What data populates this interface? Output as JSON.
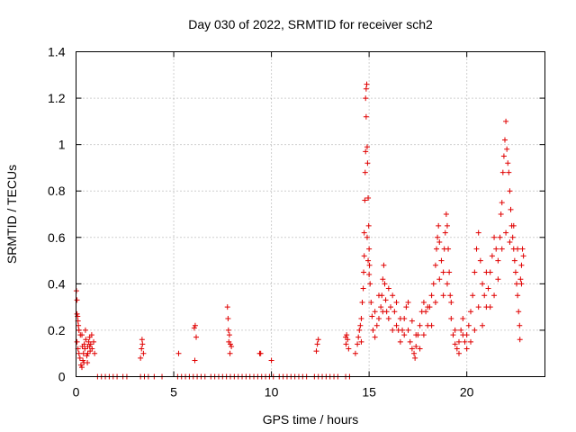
{
  "chart_data": {
    "type": "scatter",
    "title": "Day 030 of 2022, SRMTID for receiver sch2",
    "xlabel": "GPS time / hours",
    "ylabel": "SRMTID / TECUs",
    "xlim": [
      0,
      24
    ],
    "ylim": [
      0,
      1.4
    ],
    "xticks": [
      0,
      5,
      10,
      15,
      20
    ],
    "xtick_labels": [
      "0",
      "5",
      "10",
      "15",
      "20"
    ],
    "yticks": [
      0,
      0.2,
      0.4,
      0.6,
      0.8,
      1,
      1.2,
      1.4
    ],
    "ytick_labels": [
      "0",
      "0.2",
      "0.4",
      "0.6",
      "0.8",
      "1",
      "1.2",
      "1.4"
    ],
    "grid": true,
    "marker": "+",
    "series": [
      {
        "name": "sch2",
        "color": "#e00000",
        "points": [
          [
            0.02,
            0.37
          ],
          [
            0.05,
            0.33
          ],
          [
            0.05,
            0.27
          ],
          [
            0.08,
            0.26
          ],
          [
            0.1,
            0.24
          ],
          [
            0.12,
            0.22
          ],
          [
            0.15,
            0.2
          ],
          [
            0.05,
            0.15
          ],
          [
            0.1,
            0.12
          ],
          [
            0.15,
            0.1
          ],
          [
            0.2,
            0.08
          ],
          [
            0.22,
            0.18
          ],
          [
            0.25,
            0.05
          ],
          [
            0.3,
            0.04
          ],
          [
            0.32,
            0.13
          ],
          [
            0.35,
            0.07
          ],
          [
            0.38,
            0.1
          ],
          [
            0.42,
            0.14
          ],
          [
            0.45,
            0.12
          ],
          [
            0.5,
            0.16
          ],
          [
            0.55,
            0.09
          ],
          [
            0.6,
            0.13
          ],
          [
            0.65,
            0.15
          ],
          [
            0.7,
            0.17
          ],
          [
            0.72,
            0.11
          ],
          [
            0.75,
            0.14
          ],
          [
            0.8,
            0.18
          ],
          [
            0.82,
            0.12
          ],
          [
            0.3,
            0.18
          ],
          [
            0.4,
            0.06
          ],
          [
            0.6,
            0.1
          ],
          [
            0.7,
            0.13
          ],
          [
            0.9,
            0.15
          ],
          [
            0.95,
            0.1
          ],
          [
            0.48,
            0.2
          ],
          [
            0.58,
            0.06
          ],
          [
            3.3,
            0.08
          ],
          [
            3.35,
            0.12
          ],
          [
            3.4,
            0.14
          ],
          [
            3.45,
            0.1
          ],
          [
            3.38,
            0.16
          ],
          [
            5.25,
            0.1
          ],
          [
            6.05,
            0.21
          ],
          [
            6.1,
            0.22
          ],
          [
            6.15,
            0.17
          ],
          [
            6.08,
            0.07
          ],
          [
            7.75,
            0.3
          ],
          [
            7.78,
            0.25
          ],
          [
            7.8,
            0.2
          ],
          [
            7.85,
            0.18
          ],
          [
            7.82,
            0.15
          ],
          [
            7.9,
            0.14
          ],
          [
            7.95,
            0.13
          ],
          [
            7.88,
            0.1
          ],
          [
            9.4,
            0.1
          ],
          [
            9.45,
            0.1
          ],
          [
            10.0,
            0.07
          ],
          [
            12.3,
            0.11
          ],
          [
            12.35,
            0.14
          ],
          [
            12.4,
            0.16
          ],
          [
            13.8,
            0.17
          ],
          [
            13.85,
            0.18
          ],
          [
            13.9,
            0.16
          ],
          [
            13.82,
            0.14
          ],
          [
            13.95,
            0.12
          ],
          [
            14.3,
            0.1
          ],
          [
            14.4,
            0.14
          ],
          [
            14.5,
            0.2
          ],
          [
            14.55,
            0.22
          ],
          [
            14.6,
            0.25
          ],
          [
            14.65,
            0.32
          ],
          [
            14.7,
            0.38
          ],
          [
            14.72,
            0.45
          ],
          [
            14.75,
            0.52
          ],
          [
            14.75,
            0.62
          ],
          [
            14.78,
            0.76
          ],
          [
            14.8,
            0.88
          ],
          [
            14.82,
            0.97
          ],
          [
            14.85,
            1.12
          ],
          [
            14.82,
            1.2
          ],
          [
            14.85,
            1.24
          ],
          [
            14.88,
            1.26
          ],
          [
            14.9,
            0.99
          ],
          [
            14.92,
            0.92
          ],
          [
            14.95,
            0.77
          ],
          [
            14.98,
            0.65
          ],
          [
            15.0,
            0.55
          ],
          [
            15.02,
            0.48
          ],
          [
            15.05,
            0.4
          ],
          [
            15.1,
            0.32
          ],
          [
            15.15,
            0.26
          ],
          [
            15.2,
            0.2
          ],
          [
            14.9,
            0.6
          ],
          [
            14.95,
            0.5
          ],
          [
            15.0,
            0.44
          ],
          [
            15.3,
            0.17
          ],
          [
            15.4,
            0.22
          ],
          [
            15.5,
            0.25
          ],
          [
            15.6,
            0.3
          ],
          [
            15.65,
            0.35
          ],
          [
            15.7,
            0.42
          ],
          [
            15.75,
            0.48
          ],
          [
            15.8,
            0.4
          ],
          [
            15.85,
            0.33
          ],
          [
            15.9,
            0.28
          ],
          [
            16.0,
            0.25
          ],
          [
            16.1,
            0.3
          ],
          [
            16.2,
            0.35
          ],
          [
            16.3,
            0.28
          ],
          [
            16.4,
            0.22
          ],
          [
            16.5,
            0.2
          ],
          [
            16.6,
            0.15
          ],
          [
            16.7,
            0.2
          ],
          [
            16.8,
            0.25
          ],
          [
            16.9,
            0.3
          ],
          [
            17.0,
            0.2
          ],
          [
            17.1,
            0.15
          ],
          [
            17.2,
            0.12
          ],
          [
            17.3,
            0.1
          ],
          [
            17.35,
            0.08
          ],
          [
            17.4,
            0.13
          ],
          [
            17.5,
            0.18
          ],
          [
            17.6,
            0.22
          ],
          [
            17.7,
            0.28
          ],
          [
            17.8,
            0.32
          ],
          [
            17.9,
            0.28
          ],
          [
            18.0,
            0.22
          ],
          [
            18.1,
            0.3
          ],
          [
            18.2,
            0.35
          ],
          [
            18.3,
            0.4
          ],
          [
            18.4,
            0.48
          ],
          [
            18.45,
            0.55
          ],
          [
            18.5,
            0.6
          ],
          [
            18.55,
            0.65
          ],
          [
            18.6,
            0.58
          ],
          [
            18.7,
            0.5
          ],
          [
            18.8,
            0.45
          ],
          [
            18.85,
            0.55
          ],
          [
            18.9,
            0.62
          ],
          [
            18.95,
            0.7
          ],
          [
            19.0,
            0.65
          ],
          [
            19.05,
            0.55
          ],
          [
            19.1,
            0.45
          ],
          [
            19.15,
            0.35
          ],
          [
            19.2,
            0.25
          ],
          [
            19.3,
            0.18
          ],
          [
            19.4,
            0.14
          ],
          [
            19.5,
            0.12
          ],
          [
            19.6,
            0.15
          ],
          [
            19.7,
            0.2
          ],
          [
            19.8,
            0.18
          ],
          [
            19.9,
            0.15
          ],
          [
            20.0,
            0.18
          ],
          [
            20.1,
            0.22
          ],
          [
            20.2,
            0.28
          ],
          [
            20.3,
            0.35
          ],
          [
            20.4,
            0.45
          ],
          [
            20.5,
            0.55
          ],
          [
            20.6,
            0.62
          ],
          [
            20.7,
            0.5
          ],
          [
            20.8,
            0.4
          ],
          [
            20.9,
            0.35
          ],
          [
            21.0,
            0.3
          ],
          [
            21.1,
            0.38
          ],
          [
            21.2,
            0.45
          ],
          [
            21.3,
            0.52
          ],
          [
            21.4,
            0.6
          ],
          [
            21.5,
            0.55
          ],
          [
            21.6,
            0.5
          ],
          [
            21.7,
            0.6
          ],
          [
            21.75,
            0.7
          ],
          [
            21.8,
            0.75
          ],
          [
            21.85,
            0.88
          ],
          [
            21.9,
            0.95
          ],
          [
            21.95,
            1.02
          ],
          [
            22.0,
            1.1
          ],
          [
            22.05,
            0.98
          ],
          [
            22.1,
            0.92
          ],
          [
            22.15,
            0.88
          ],
          [
            22.2,
            0.8
          ],
          [
            22.25,
            0.72
          ],
          [
            22.3,
            0.65
          ],
          [
            22.35,
            0.6
          ],
          [
            22.4,
            0.55
          ],
          [
            22.45,
            0.5
          ],
          [
            22.5,
            0.45
          ],
          [
            22.55,
            0.4
          ],
          [
            22.6,
            0.35
          ],
          [
            22.65,
            0.28
          ],
          [
            22.7,
            0.22
          ],
          [
            22.72,
            0.16
          ],
          [
            22.75,
            0.42
          ],
          [
            22.8,
            0.48
          ],
          [
            22.85,
            0.55
          ],
          [
            22.9,
            0.52
          ],
          [
            15.3,
            0.28
          ],
          [
            15.5,
            0.35
          ],
          [
            15.7,
            0.28
          ],
          [
            16.0,
            0.38
          ],
          [
            16.2,
            0.2
          ],
          [
            16.4,
            0.32
          ],
          [
            16.6,
            0.25
          ],
          [
            16.8,
            0.18
          ],
          [
            17.0,
            0.32
          ],
          [
            17.2,
            0.24
          ],
          [
            17.4,
            0.18
          ],
          [
            17.6,
            0.12
          ],
          [
            17.8,
            0.18
          ],
          [
            18.0,
            0.3
          ],
          [
            18.2,
            0.22
          ],
          [
            18.4,
            0.32
          ],
          [
            18.6,
            0.42
          ],
          [
            18.8,
            0.35
          ],
          [
            19.0,
            0.4
          ],
          [
            19.2,
            0.32
          ],
          [
            19.4,
            0.2
          ],
          [
            19.6,
            0.1
          ],
          [
            19.8,
            0.25
          ],
          [
            20.0,
            0.12
          ],
          [
            20.2,
            0.15
          ],
          [
            20.4,
            0.2
          ],
          [
            20.6,
            0.3
          ],
          [
            20.8,
            0.22
          ],
          [
            21.0,
            0.45
          ],
          [
            21.2,
            0.3
          ],
          [
            21.4,
            0.35
          ],
          [
            21.6,
            0.42
          ],
          [
            21.8,
            0.55
          ],
          [
            22.0,
            0.62
          ],
          [
            22.2,
            0.58
          ],
          [
            22.4,
            0.65
          ],
          [
            22.6,
            0.55
          ],
          [
            22.8,
            0.4
          ],
          [
            14.45,
            0.17
          ],
          [
            14.6,
            0.15
          ],
          [
            1.1,
            0
          ],
          [
            1.3,
            0
          ],
          [
            1.5,
            0
          ],
          [
            1.7,
            0
          ],
          [
            1.9,
            0
          ],
          [
            2.1,
            0
          ],
          [
            2.4,
            0
          ],
          [
            2.6,
            0
          ],
          [
            3.3,
            0
          ],
          [
            3.5,
            0
          ],
          [
            3.7,
            0
          ],
          [
            4.0,
            0
          ],
          [
            4.4,
            0
          ],
          [
            5.2,
            0
          ],
          [
            5.4,
            0
          ],
          [
            5.6,
            0
          ],
          [
            5.8,
            0
          ],
          [
            6.0,
            0
          ],
          [
            6.2,
            0
          ],
          [
            6.4,
            0
          ],
          [
            6.6,
            0
          ],
          [
            6.9,
            0
          ],
          [
            7.1,
            0
          ],
          [
            7.3,
            0
          ],
          [
            7.5,
            0
          ],
          [
            7.7,
            0
          ],
          [
            7.9,
            0
          ],
          [
            8.1,
            0
          ],
          [
            8.3,
            0
          ],
          [
            8.5,
            0
          ],
          [
            8.7,
            0
          ],
          [
            8.9,
            0
          ],
          [
            9.1,
            0
          ],
          [
            9.3,
            0
          ],
          [
            9.5,
            0
          ],
          [
            9.7,
            0
          ],
          [
            9.9,
            0
          ],
          [
            10.1,
            0
          ],
          [
            10.4,
            0
          ],
          [
            10.6,
            0
          ],
          [
            10.8,
            0
          ],
          [
            11.0,
            0
          ],
          [
            11.2,
            0
          ],
          [
            11.4,
            0
          ],
          [
            11.6,
            0
          ],
          [
            11.8,
            0
          ],
          [
            12.2,
            0
          ],
          [
            12.4,
            0
          ],
          [
            12.6,
            0
          ],
          [
            12.8,
            0
          ],
          [
            13.0,
            0
          ],
          [
            13.2,
            0
          ],
          [
            13.4,
            0
          ],
          [
            13.8,
            0
          ],
          [
            14.0,
            0
          ]
        ]
      }
    ]
  }
}
